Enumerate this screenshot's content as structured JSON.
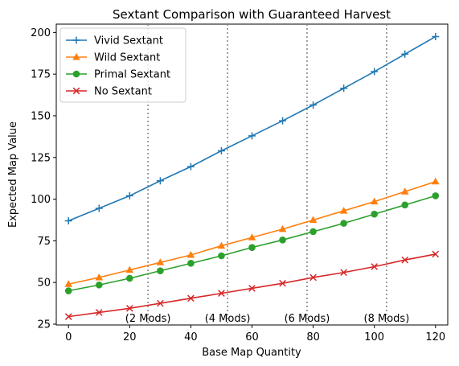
{
  "chart_data": {
    "type": "line",
    "title": "Sextant Comparison with Guaranteed Harvest",
    "xlabel": "Base Map Quantity",
    "ylabel": "Expected Map Value",
    "xlim": [
      -4,
      124
    ],
    "ylim": [
      24.5,
      205
    ],
    "xticks": [
      0,
      20,
      40,
      60,
      80,
      100,
      120
    ],
    "yticks": [
      25,
      50,
      75,
      100,
      125,
      150,
      175,
      200
    ],
    "grid": false,
    "legend_position": "top-left",
    "x": [
      0,
      10,
      20,
      30,
      40,
      50,
      60,
      70,
      80,
      90,
      100,
      110,
      120
    ],
    "series": [
      {
        "name": "Vivid Sextant",
        "color": "#1f77b4",
        "marker": "plus",
        "values": [
          87,
          94.5,
          102,
          111,
          119.5,
          129,
          138,
          147,
          156.5,
          166.5,
          176.5,
          187,
          197.5
        ]
      },
      {
        "name": "Wild Sextant",
        "color": "#ff7f0e",
        "marker": "triangle",
        "values": [
          49,
          53,
          57.5,
          62,
          66.5,
          72,
          77,
          82,
          87.5,
          93,
          98.5,
          104.5,
          110.5
        ]
      },
      {
        "name": "Primal Sextant",
        "color": "#2ca02c",
        "marker": "circle",
        "values": [
          45,
          48.5,
          52.5,
          57,
          61.5,
          66,
          71,
          75.5,
          80.5,
          85.5,
          91,
          96.5,
          102
        ]
      },
      {
        "name": "No Sextant",
        "color": "#d62728",
        "marker": "x",
        "values": [
          29.5,
          32,
          34.5,
          37.5,
          40.5,
          43.5,
          46.5,
          49.5,
          53,
          56,
          59.5,
          63.5,
          67
        ]
      }
    ],
    "vlines": [
      {
        "x": 26,
        "label": "(2 Mods)"
      },
      {
        "x": 52,
        "label": "(4 Mods)"
      },
      {
        "x": 78,
        "label": "(6 Mods)"
      },
      {
        "x": 104,
        "label": "(8 Mods)"
      }
    ],
    "vline_label_y": 28.5,
    "vline_color": "#808080"
  }
}
